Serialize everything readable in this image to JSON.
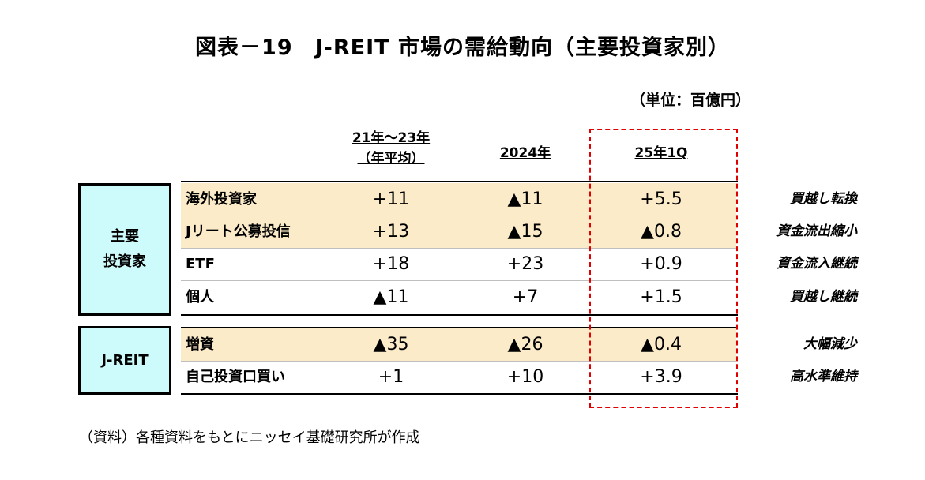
{
  "title": "図表－19　J-REIT 市場の需給動向（主要投資家別）",
  "unit": "（単位：百億円）",
  "columns": {
    "col1_line1": "21年～23年",
    "col1_line2": "（年平均）",
    "col2": "2024年",
    "col3": "25年1Q"
  },
  "groups": {
    "main_line1": "主要",
    "main_line2": "投資家",
    "jreit": "J-REIT"
  },
  "rows": [
    {
      "label": "海外投資家",
      "v1": "+11",
      "v2": "▲11",
      "v3": "+5.5",
      "note": "買越し転換"
    },
    {
      "label": "Jリート公募投信",
      "v1": "+13",
      "v2": "▲15",
      "v3": "▲0.8",
      "note": "資金流出縮小"
    },
    {
      "label": "ETF",
      "v1": "+18",
      "v2": "+23",
      "v3": "+0.9",
      "note": "資金流入継続"
    },
    {
      "label": "個人",
      "v1": "▲11",
      "v2": "+7",
      "v3": "+1.5",
      "note": "買越し継続"
    },
    {
      "label": "増資",
      "v1": "▲35",
      "v2": "▲26",
      "v3": "▲0.4",
      "note": "大幅減少"
    },
    {
      "label": "自己投資口買い",
      "v1": "+1",
      "v2": "+10",
      "v3": "+3.9",
      "note": "高水準維持"
    }
  ],
  "colors": {
    "band": "#fbebc9",
    "group_box": "#cdfbfb",
    "highlight": "#e00000"
  },
  "source": "（資料）各種資料をもとにニッセイ基礎研究所が作成"
}
